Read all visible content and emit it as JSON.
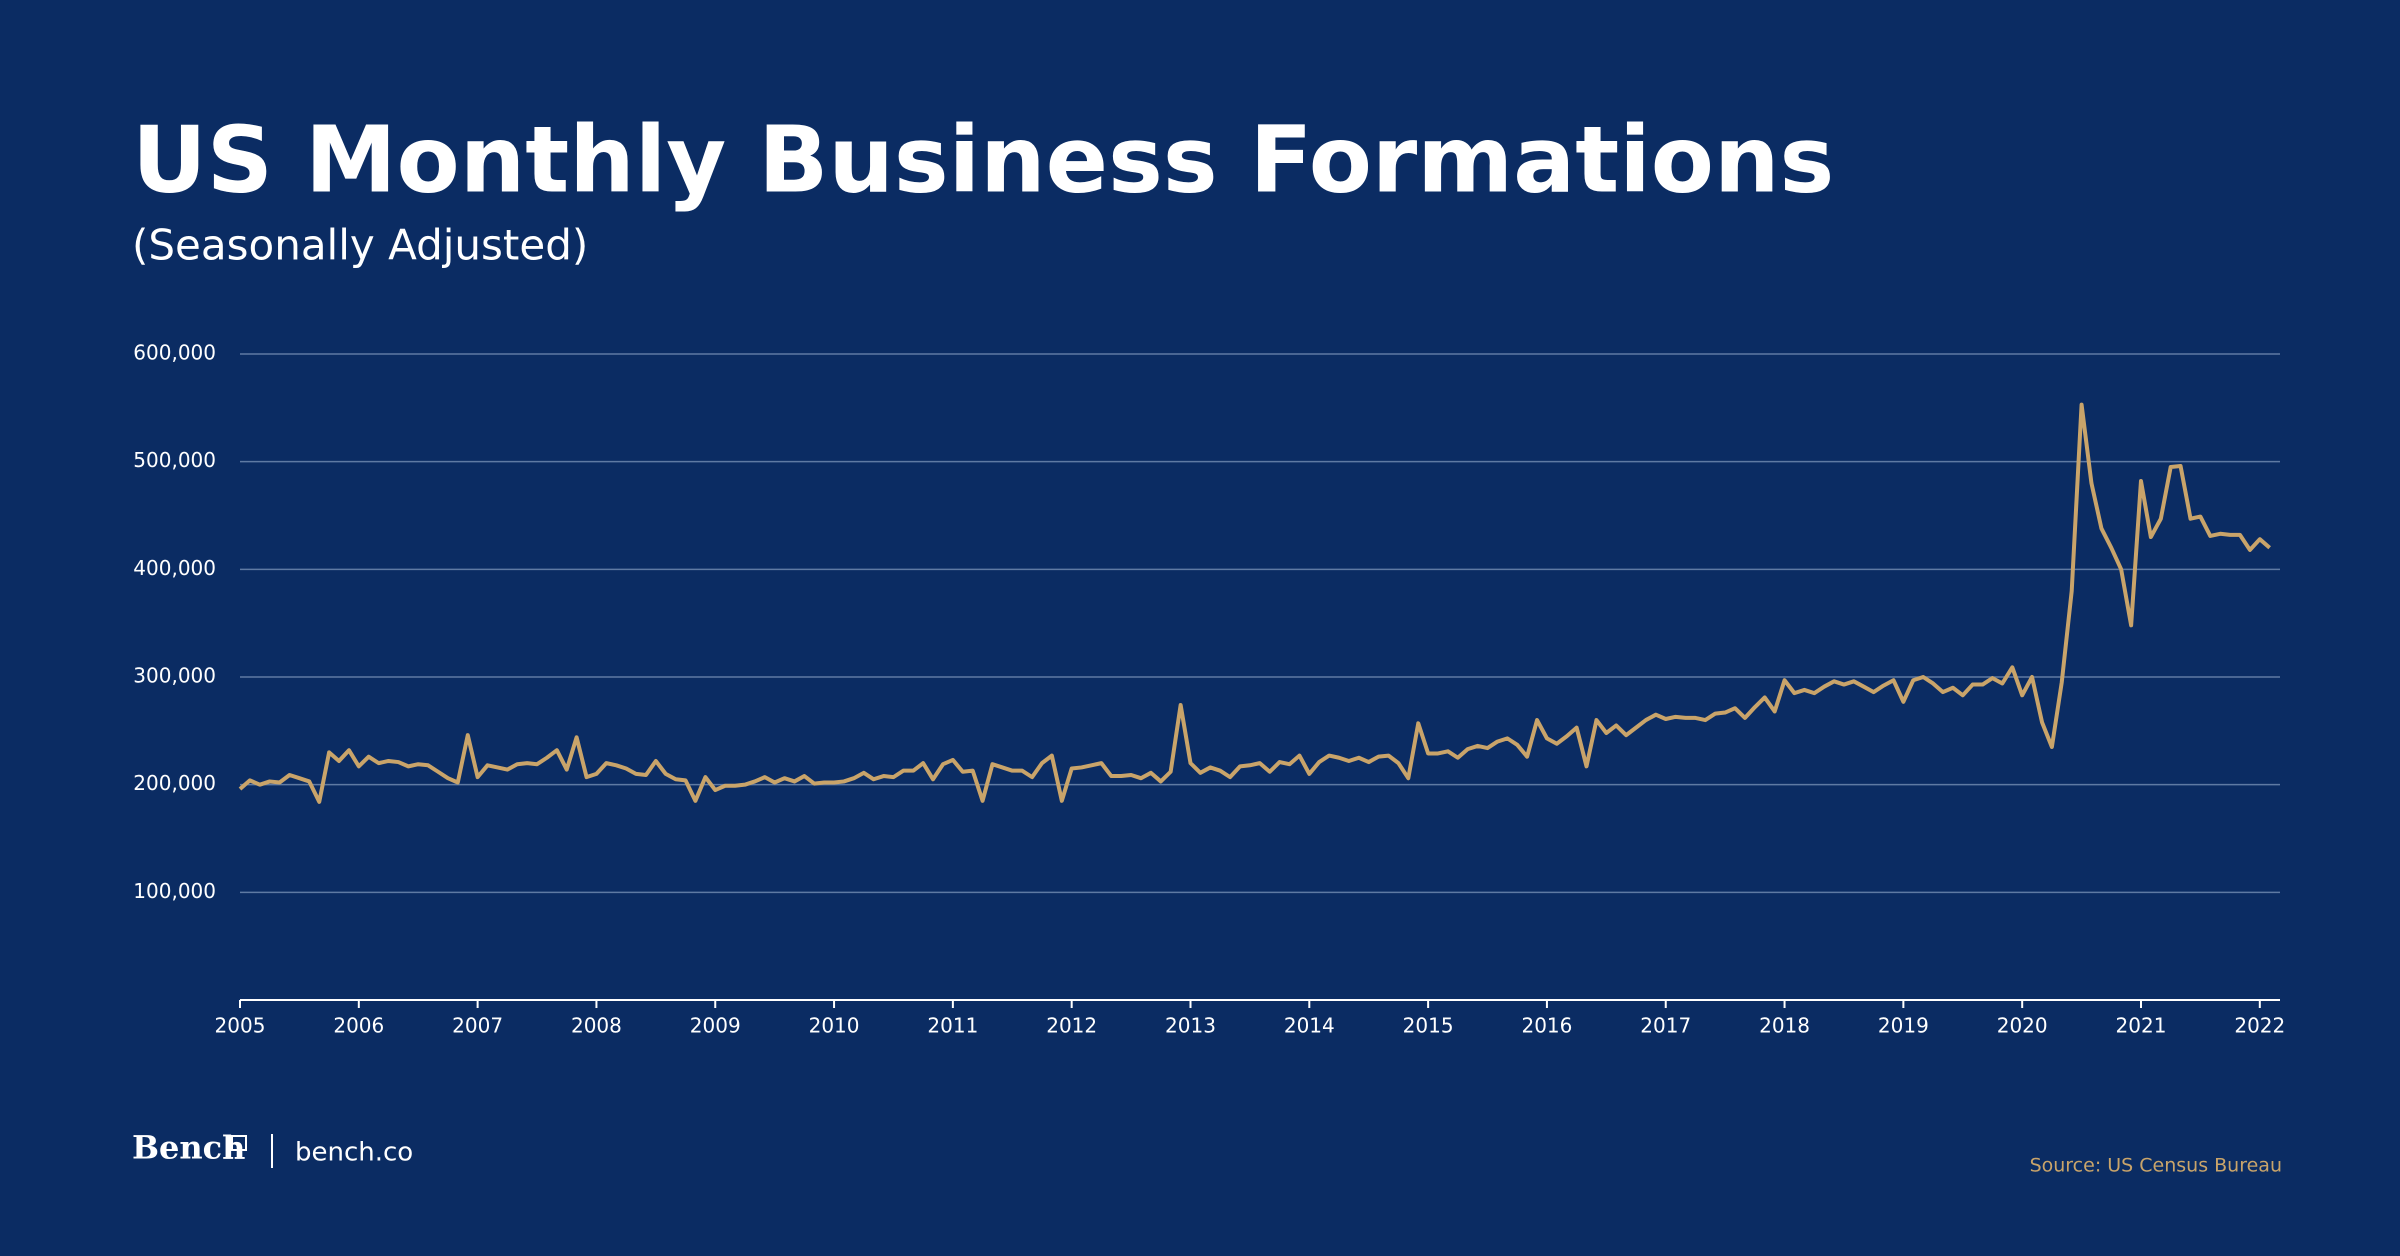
{
  "chart_data": {
    "type": "line",
    "title": "US Monthly Business Formations",
    "subtitle": "(Seasonally Adjusted)",
    "source": "Source: US Census Bureau",
    "xlim": [
      2005,
      2022.17
    ],
    "xticks": [
      2005,
      2006,
      2007,
      2008,
      2009,
      2010,
      2011,
      2012,
      2013,
      2014,
      2015,
      2016,
      2017,
      2018,
      2019,
      2020,
      2021,
      2022
    ],
    "ylim": [
      0,
      600000
    ],
    "yticks": [
      {
        "value": 100000,
        "label": "100,000"
      },
      {
        "value": 200000,
        "label": "200,000"
      },
      {
        "value": 300000,
        "label": "300,000"
      },
      {
        "value": 400000,
        "label": "400,000"
      },
      {
        "value": 500000,
        "label": "500,000"
      },
      {
        "value": 600000,
        "label": "600,000"
      }
    ],
    "grid": true,
    "x": [
      2005,
      2005.083,
      2005.167,
      2005.25,
      2005.333,
      2005.417,
      2005.5,
      2005.583,
      2005.667,
      2005.75,
      2005.833,
      2005.917,
      2006,
      2006.083,
      2006.167,
      2006.25,
      2006.333,
      2006.417,
      2006.5,
      2006.583,
      2006.667,
      2006.75,
      2006.833,
      2006.917,
      2007,
      2007.083,
      2007.167,
      2007.25,
      2007.333,
      2007.417,
      2007.5,
      2007.583,
      2007.667,
      2007.75,
      2007.833,
      2007.917,
      2008,
      2008.083,
      2008.167,
      2008.25,
      2008.333,
      2008.417,
      2008.5,
      2008.583,
      2008.667,
      2008.75,
      2008.833,
      2008.917,
      2009,
      2009.083,
      2009.167,
      2009.25,
      2009.333,
      2009.417,
      2009.5,
      2009.583,
      2009.667,
      2009.75,
      2009.833,
      2009.917,
      2010,
      2010.083,
      2010.167,
      2010.25,
      2010.333,
      2010.417,
      2010.5,
      2010.583,
      2010.667,
      2010.75,
      2010.833,
      2010.917,
      2011,
      2011.083,
      2011.167,
      2011.25,
      2011.333,
      2011.417,
      2011.5,
      2011.583,
      2011.667,
      2011.75,
      2011.833,
      2011.917,
      2012,
      2012.083,
      2012.167,
      2012.25,
      2012.333,
      2012.417,
      2012.5,
      2012.583,
      2012.667,
      2012.75,
      2012.833,
      2012.917,
      2013,
      2013.083,
      2013.167,
      2013.25,
      2013.333,
      2013.417,
      2013.5,
      2013.583,
      2013.667,
      2013.75,
      2013.833,
      2013.917,
      2014,
      2014.083,
      2014.167,
      2014.25,
      2014.333,
      2014.417,
      2014.5,
      2014.583,
      2014.667,
      2014.75,
      2014.833,
      2014.917,
      2015,
      2015.083,
      2015.167,
      2015.25,
      2015.333,
      2015.417,
      2015.5,
      2015.583,
      2015.667,
      2015.75,
      2015.833,
      2015.917,
      2016,
      2016.083,
      2016.167,
      2016.25,
      2016.333,
      2016.417,
      2016.5,
      2016.583,
      2016.667,
      2016.75,
      2016.833,
      2016.917,
      2017,
      2017.083,
      2017.167,
      2017.25,
      2017.333,
      2017.417,
      2017.5,
      2017.583,
      2017.667,
      2017.75,
      2017.833,
      2017.917,
      2018,
      2018.083,
      2018.167,
      2018.25,
      2018.333,
      2018.417,
      2018.5,
      2018.583,
      2018.667,
      2018.75,
      2018.833,
      2018.917,
      2019,
      2019.083,
      2019.167,
      2019.25,
      2019.333,
      2019.417,
      2019.5,
      2019.583,
      2019.667,
      2019.75,
      2019.833,
      2019.917,
      2020,
      2020.083,
      2020.167,
      2020.25,
      2020.333,
      2020.417,
      2020.5,
      2020.583,
      2020.667,
      2020.75,
      2020.833,
      2020.917,
      2021,
      2021.083,
      2021.167,
      2021.25,
      2021.333,
      2021.417,
      2021.5,
      2021.583,
      2021.667,
      2021.75,
      2021.833,
      2021.917,
      2022,
      2022.083
    ],
    "series": [
      {
        "color": "#c9a46a",
        "values": [
          196000,
          204000,
          200000,
          203000,
          202000,
          209000,
          206000,
          203000,
          184000,
          230000,
          222000,
          232000,
          217000,
          226000,
          220000,
          222000,
          221000,
          217000,
          219000,
          218000,
          212000,
          206000,
          202000,
          246000,
          207000,
          218000,
          216000,
          214000,
          219000,
          220000,
          219000,
          225000,
          232000,
          214000,
          244000,
          207000,
          210000,
          220000,
          218000,
          215000,
          210000,
          209000,
          222000,
          210000,
          205000,
          204000,
          185000,
          207000,
          195000,
          199000,
          199000,
          200000,
          203000,
          207000,
          202000,
          206000,
          203000,
          208000,
          201000,
          202000,
          202000,
          203000,
          206000,
          211000,
          205000,
          208000,
          207000,
          213000,
          213000,
          220000,
          205000,
          219000,
          223000,
          212000,
          213000,
          185000,
          219000,
          216000,
          213000,
          213000,
          207000,
          220000,
          227000,
          185000,
          215000,
          216000,
          218000,
          220000,
          208000,
          208000,
          209000,
          206000,
          211000,
          203000,
          212000,
          274000,
          220000,
          211000,
          216000,
          213000,
          207000,
          217000,
          218000,
          220000,
          212000,
          221000,
          219000,
          227000,
          210000,
          221000,
          227000,
          225000,
          222000,
          225000,
          221000,
          226000,
          227000,
          220000,
          206000,
          257000,
          229000,
          229000,
          231000,
          225000,
          233000,
          236000,
          234000,
          240000,
          243000,
          237000,
          226000,
          260000,
          243000,
          238000,
          245000,
          253000,
          217000,
          260000,
          248000,
          255000,
          246000,
          253000,
          260000,
          265000,
          261000,
          263000,
          262000,
          262000,
          260000,
          266000,
          267000,
          271000,
          262000,
          272000,
          281000,
          268000,
          297000,
          285000,
          288000,
          285000,
          291000,
          296000,
          293000,
          296000,
          291000,
          286000,
          292000,
          297000,
          277000,
          297000,
          300000,
          294000,
          286000,
          290000,
          283000,
          293000,
          293000,
          299000,
          294000,
          309000,
          283000,
          300000,
          258000,
          235000,
          295000,
          380000,
          553000,
          480000,
          438000,
          420000,
          400000,
          348000,
          482000,
          430000,
          447000,
          495000,
          496000,
          447000,
          449000,
          431000,
          433000,
          432000,
          432000,
          418000,
          428000,
          420000
        ]
      }
    ]
  },
  "footer": {
    "logo": "Bench",
    "website": "bench.co"
  }
}
